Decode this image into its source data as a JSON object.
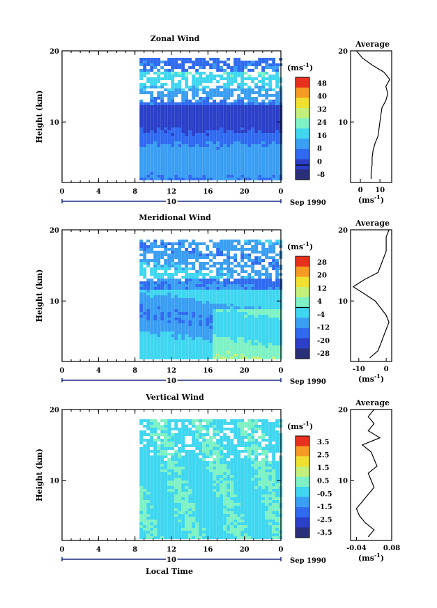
{
  "figure": {
    "xlabel": "Local Time",
    "date_label": "Sep 1990",
    "colorbar_unit": "(ms",
    "unit_exp": "-1",
    "unit_close": ")",
    "average_title": "Average",
    "height_label": "Height (km)"
  },
  "chart_data": [
    {
      "type": "heatmap",
      "title": "Zonal Wind",
      "xlabel": "Local Time",
      "ylabel": "Height (km)",
      "xlim": [
        0,
        24
      ],
      "ylim": [
        1.5,
        20
      ],
      "xticks": [
        "0",
        "4",
        "8",
        "12",
        "16",
        "20",
        "0"
      ],
      "yticks": [
        "10",
        "20"
      ],
      "day_label": "10",
      "data_start_hour": 8.5,
      "colorbar_ticks": [
        "48",
        "40",
        "32",
        "24",
        "16",
        "8",
        "0",
        "-8"
      ],
      "colorbar_range": [
        -8,
        48
      ],
      "zero_line": 0,
      "profile_title": "Average",
      "profile_xlim": [
        -5,
        16
      ],
      "profile_xticks": [
        "0",
        "10"
      ],
      "profile_yticks": [
        "10",
        "20"
      ],
      "profile": [
        [
          5.5,
          2
        ],
        [
          5.5,
          3
        ],
        [
          6,
          4
        ],
        [
          6,
          5
        ],
        [
          6.5,
          6
        ],
        [
          7.5,
          7
        ],
        [
          9,
          8
        ],
        [
          9.5,
          9
        ],
        [
          10,
          10
        ],
        [
          10.5,
          11
        ],
        [
          11,
          12
        ],
        [
          13,
          13
        ],
        [
          14,
          14
        ],
        [
          13,
          15
        ],
        [
          15,
          16
        ],
        [
          12,
          17
        ],
        [
          6,
          18
        ],
        [
          1,
          19
        ],
        [
          -2,
          20
        ]
      ]
    },
    {
      "type": "heatmap",
      "title": "Meridional Wind",
      "xlabel": "Local Time",
      "ylabel": "Height (km)",
      "xlim": [
        0,
        24
      ],
      "ylim": [
        1.5,
        20
      ],
      "xticks": [
        "0",
        "4",
        "8",
        "12",
        "16",
        "20",
        "0"
      ],
      "yticks": [
        "10",
        "20"
      ],
      "day_label": "10",
      "data_start_hour": 8.5,
      "colorbar_ticks": [
        "28",
        "20",
        "12",
        "4",
        "-4",
        "-12",
        "-20",
        "-28"
      ],
      "colorbar_range": [
        -28,
        28
      ],
      "zero_line": 0,
      "profile_title": "Average",
      "profile_xlim": [
        -13,
        2
      ],
      "profile_xticks": [
        "-10",
        "0"
      ],
      "profile_yticks": [
        "10",
        "20"
      ],
      "profile": [
        [
          -6,
          2
        ],
        [
          -3,
          3
        ],
        [
          -2,
          4
        ],
        [
          -1,
          5
        ],
        [
          0,
          6
        ],
        [
          1,
          7
        ],
        [
          0,
          8
        ],
        [
          -2,
          9
        ],
        [
          -4,
          10
        ],
        [
          -8,
          11
        ],
        [
          -12,
          12
        ],
        [
          -8,
          13
        ],
        [
          -3,
          14
        ],
        [
          -2,
          15
        ],
        [
          -1,
          16
        ],
        [
          0,
          17
        ],
        [
          0,
          18
        ],
        [
          0,
          19
        ],
        [
          1,
          20
        ]
      ]
    },
    {
      "type": "heatmap",
      "title": "Vertical Wind",
      "xlabel": "Local Time",
      "ylabel": "Height (km)",
      "xlim": [
        0,
        24
      ],
      "ylim": [
        1.5,
        20
      ],
      "xticks": [
        "0",
        "4",
        "8",
        "12",
        "16",
        "20",
        "0"
      ],
      "yticks": [
        "10",
        "20"
      ],
      "day_label": "10",
      "data_start_hour": 8.5,
      "colorbar_ticks": [
        "3.5",
        "2.5",
        "1.5",
        "0.5",
        "-0.5",
        "-1.5",
        "-2.5",
        "-3.5"
      ],
      "colorbar_range": [
        -3.5,
        3.5
      ],
      "zero_line": null,
      "profile_title": "Average",
      "profile_xlim": [
        -0.06,
        0.08
      ],
      "profile_xticks": [
        "-0.04",
        "0.08"
      ],
      "profile_yticks": [
        "10",
        "20"
      ],
      "profile": [
        [
          0,
          2
        ],
        [
          0.02,
          3
        ],
        [
          -0.01,
          4
        ],
        [
          -0.03,
          5
        ],
        [
          -0.04,
          6
        ],
        [
          -0.02,
          7
        ],
        [
          0.0,
          8
        ],
        [
          0.02,
          9
        ],
        [
          0.01,
          10
        ],
        [
          0.0,
          11
        ],
        [
          0.03,
          12
        ],
        [
          0.02,
          13
        ],
        [
          0.01,
          14
        ],
        [
          -0.02,
          15
        ],
        [
          0.04,
          16
        ],
        [
          0.0,
          17
        ],
        [
          0.02,
          18
        ],
        [
          0.0,
          19
        ],
        [
          0.02,
          20
        ]
      ]
    }
  ]
}
